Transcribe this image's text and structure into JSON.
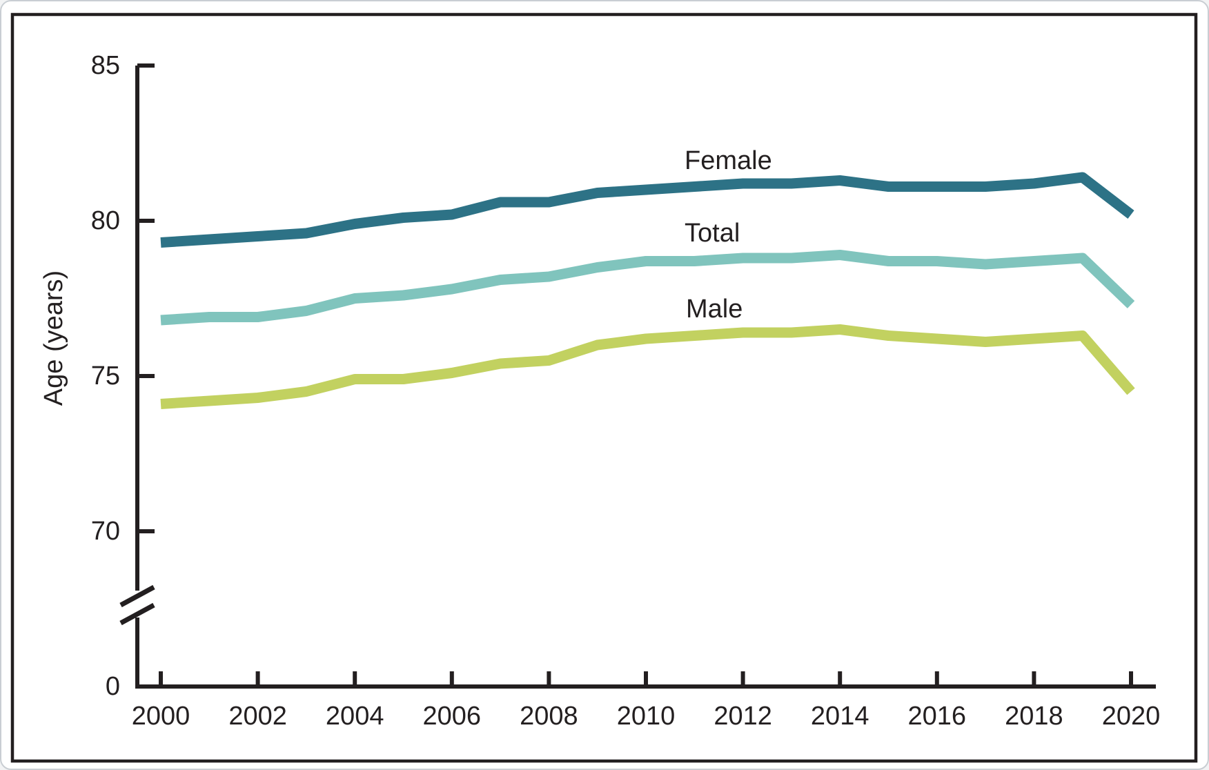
{
  "figure": {
    "colors": {
      "axis": "#231f20",
      "frame": "#231f20",
      "card_border": "#c9ced3",
      "background": "#ffffff",
      "text": "#231f20"
    }
  },
  "chart_data": {
    "type": "line",
    "title": "",
    "xlabel": "",
    "ylabel": "Age (years)",
    "grid": false,
    "legend_position": "inline-labels-above-lines",
    "axis_break": true,
    "ylim": [
      70,
      85
    ],
    "y_axis_note": "broken axis: 0 shown at bottom, then 70-85",
    "x": [
      2000,
      2001,
      2002,
      2003,
      2004,
      2005,
      2006,
      2007,
      2008,
      2009,
      2010,
      2011,
      2012,
      2013,
      2014,
      2015,
      2016,
      2017,
      2018,
      2019,
      2020
    ],
    "x_tick_years": [
      2000,
      2002,
      2004,
      2006,
      2008,
      2010,
      2012,
      2014,
      2016,
      2018,
      2020
    ],
    "x_tick_labels": [
      "2000",
      "2002",
      "2004",
      "2006",
      "2008",
      "2010",
      "2012",
      "2014",
      "2016",
      "2018",
      "2020"
    ],
    "y_ticks": [
      {
        "label": "85",
        "value": 85
      },
      {
        "label": "80",
        "value": 80
      },
      {
        "label": "75",
        "value": 75
      },
      {
        "label": "70",
        "value": 70
      },
      {
        "label": "0",
        "value": 0
      }
    ],
    "series": [
      {
        "name": "Female",
        "color": "#2d7286",
        "values": [
          79.3,
          79.4,
          79.5,
          79.6,
          79.9,
          80.1,
          80.2,
          80.6,
          80.6,
          80.9,
          81.0,
          81.1,
          81.2,
          81.2,
          81.3,
          81.1,
          81.1,
          81.1,
          81.2,
          81.4,
          80.2
        ]
      },
      {
        "name": "Total",
        "color": "#80c4bd",
        "values": [
          76.8,
          76.9,
          76.9,
          77.1,
          77.5,
          77.6,
          77.8,
          78.1,
          78.2,
          78.5,
          78.7,
          78.7,
          78.8,
          78.8,
          78.9,
          78.7,
          78.7,
          78.6,
          78.7,
          78.8,
          77.3
        ]
      },
      {
        "name": "Male",
        "color": "#c2d160",
        "values": [
          74.1,
          74.2,
          74.3,
          74.5,
          74.9,
          74.9,
          75.1,
          75.4,
          75.5,
          76.0,
          76.2,
          76.3,
          76.4,
          76.4,
          76.5,
          76.3,
          76.2,
          76.1,
          76.2,
          76.3,
          74.5
        ]
      }
    ]
  }
}
